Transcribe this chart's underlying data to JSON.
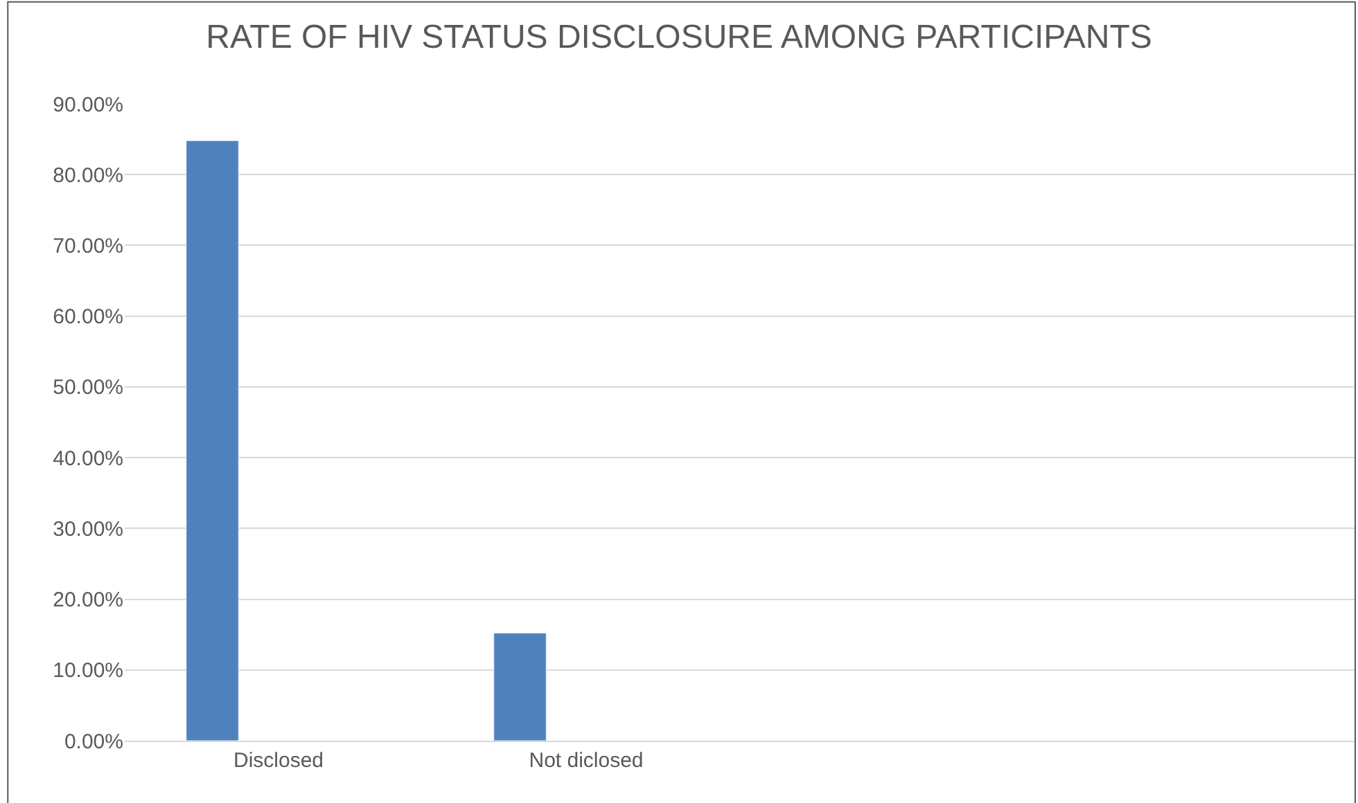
{
  "chart_data": {
    "type": "bar",
    "title": "RATE OF HIV STATUS DISCLOSURE AMONG PARTICIPANTS",
    "categories": [
      "Disclosed",
      "Not diclosed",
      null,
      null
    ],
    "values": [
      84.8,
      15.2,
      null,
      null
    ],
    "color": "#4f81bd",
    "ylim": [
      0,
      90
    ],
    "yticks": [
      {
        "value": 0,
        "label": "0.00%"
      },
      {
        "value": 10,
        "label": "10.00%"
      },
      {
        "value": 20,
        "label": "20.00%"
      },
      {
        "value": 30,
        "label": "30.00%"
      },
      {
        "value": 40,
        "label": "40.00%"
      },
      {
        "value": 50,
        "label": "50.00%"
      },
      {
        "value": 60,
        "label": "60.00%"
      },
      {
        "value": 70,
        "label": "70.00%"
      },
      {
        "value": 80,
        "label": "80.00%"
      },
      {
        "value": 90,
        "label": "90.00%"
      }
    ],
    "grid": "y"
  }
}
